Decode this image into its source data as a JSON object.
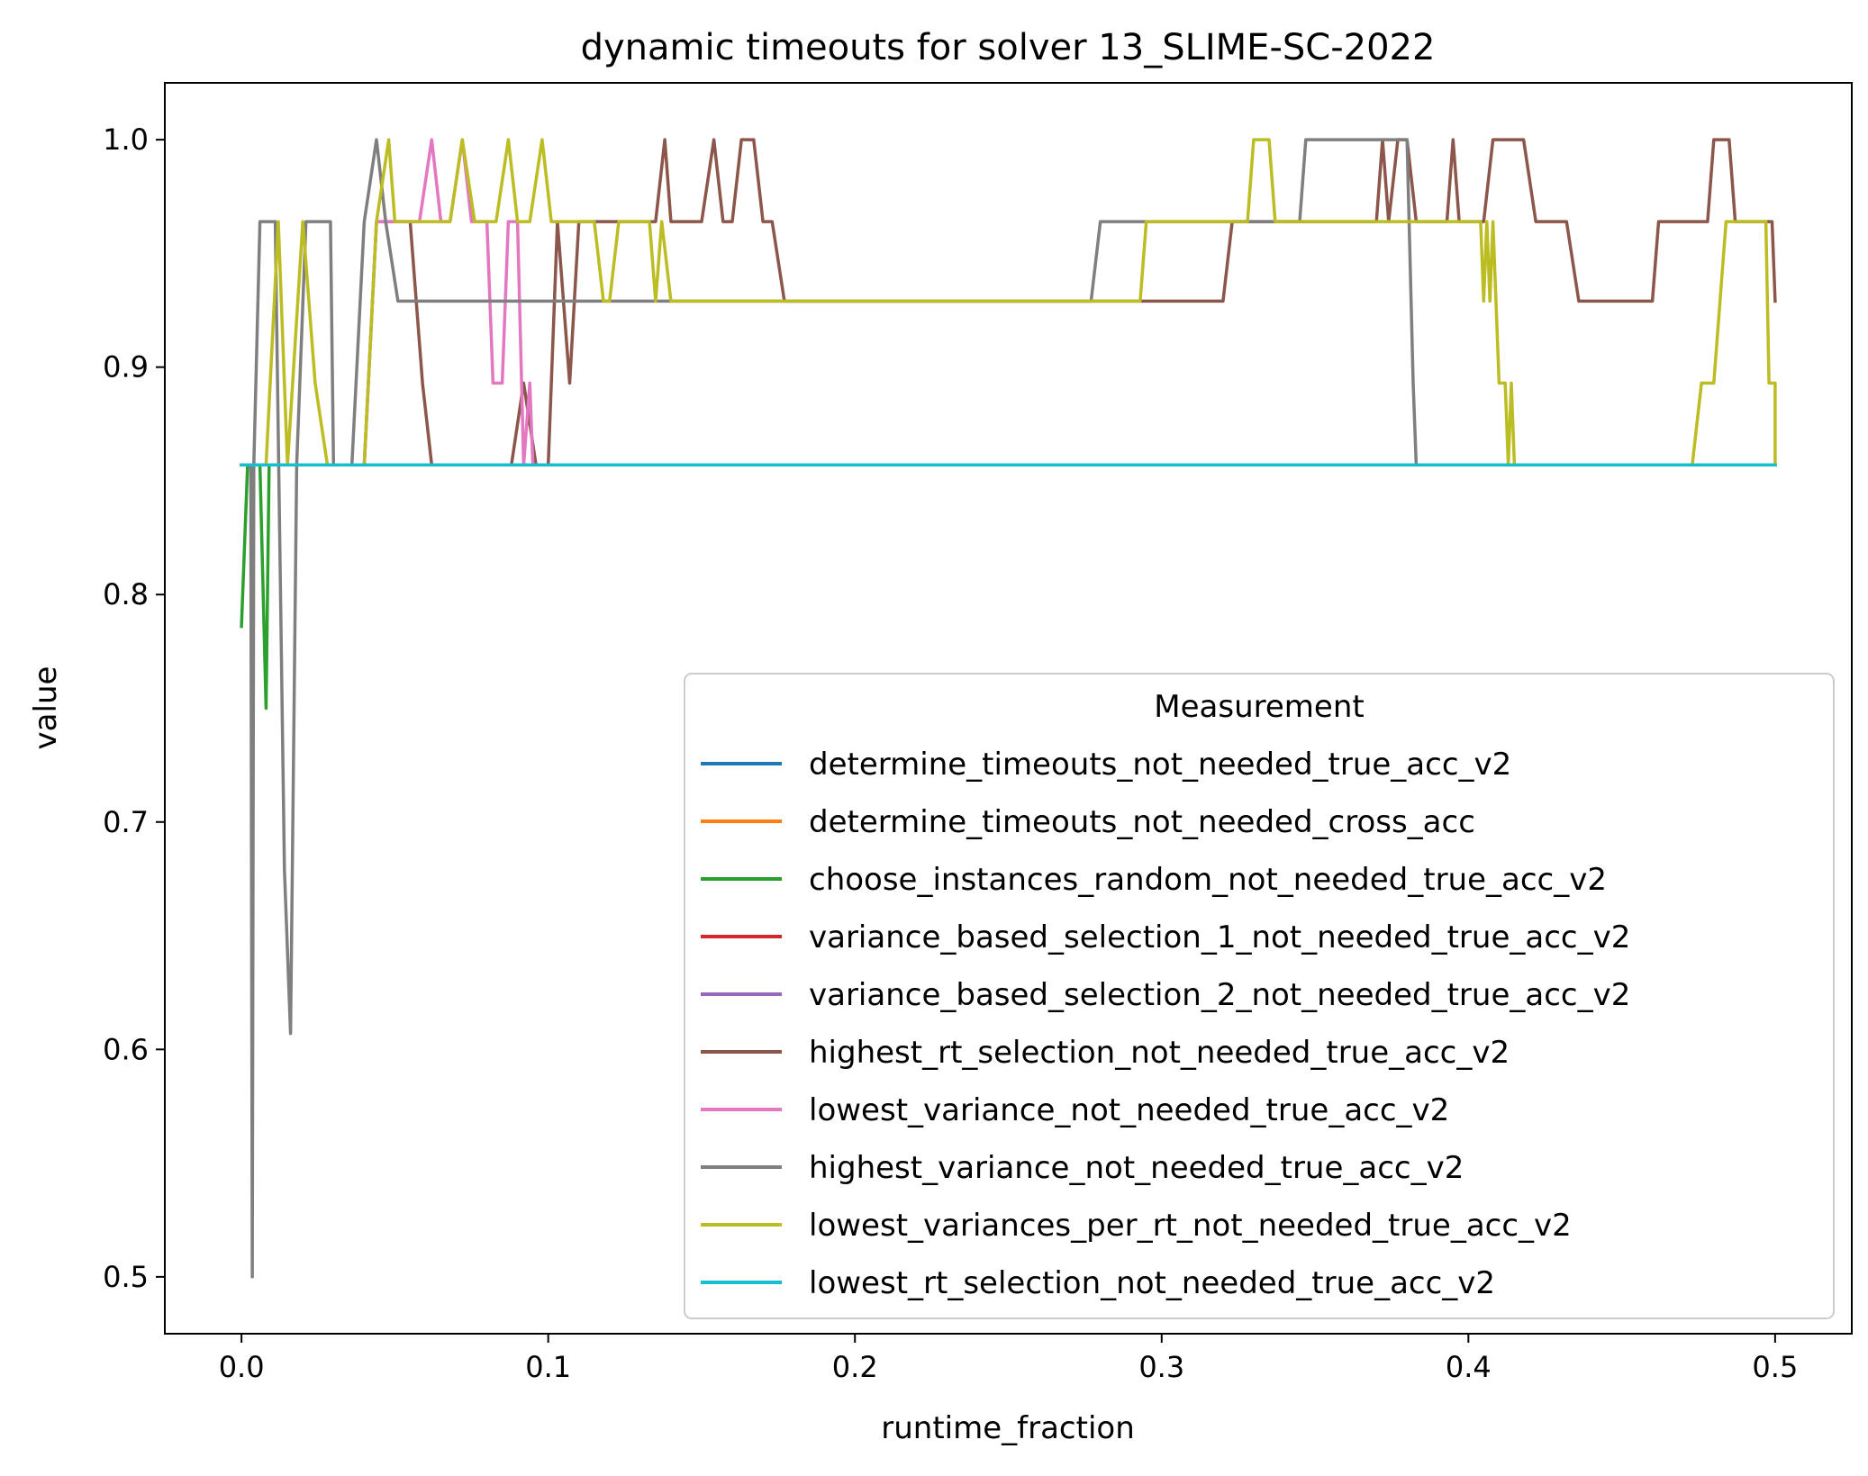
{
  "chart_data": {
    "type": "line",
    "title": "dynamic timeouts for solver 13_SLIME-SC-2022",
    "xlabel": "runtime_fraction",
    "ylabel": "value",
    "xlim": [
      -0.025,
      0.525
    ],
    "ylim": [
      0.475,
      1.025
    ],
    "xticks": [
      0.0,
      0.1,
      0.2,
      0.3,
      0.4,
      0.5
    ],
    "xtick_labels": [
      "0.0",
      "0.1",
      "0.2",
      "0.3",
      "0.4",
      "0.5"
    ],
    "yticks": [
      0.5,
      0.6,
      0.7,
      0.8,
      0.9,
      1.0
    ],
    "ytick_labels": [
      "0.5",
      "0.6",
      "0.7",
      "0.8",
      "0.9",
      "1.0"
    ],
    "grid": false,
    "legend_title": "Measurement",
    "legend_position": "lower-right",
    "series": [
      {
        "name": "determine_timeouts_not_needed_true_acc_v2",
        "color": "#1f77b4",
        "points": [
          [
            0.0,
            0.857
          ],
          [
            0.5,
            0.857
          ]
        ]
      },
      {
        "name": "determine_timeouts_not_needed_cross_acc",
        "color": "#ff7f0e",
        "points": [
          [
            0.0,
            0.857
          ],
          [
            0.5,
            0.857
          ]
        ]
      },
      {
        "name": "choose_instances_random_not_needed_true_acc_v2",
        "color": "#2ca02c",
        "points": [
          [
            0.0,
            0.786
          ],
          [
            0.002,
            0.857
          ],
          [
            0.006,
            0.857
          ],
          [
            0.008,
            0.75
          ],
          [
            0.009,
            0.857
          ],
          [
            0.5,
            0.857
          ]
        ]
      },
      {
        "name": "variance_based_selection_1_not_needed_true_acc_v2",
        "color": "#d62728",
        "points": [
          [
            0.0,
            0.857
          ],
          [
            0.5,
            0.857
          ]
        ]
      },
      {
        "name": "variance_based_selection_2_not_needed_true_acc_v2",
        "color": "#9467bd",
        "points": [
          [
            0.0,
            0.857
          ],
          [
            0.5,
            0.857
          ]
        ]
      },
      {
        "name": "highest_rt_selection_not_needed_true_acc_v2",
        "color": "#8c564b",
        "points": [
          [
            0.0,
            0.857
          ],
          [
            0.04,
            0.857
          ],
          [
            0.044,
            0.964
          ],
          [
            0.055,
            0.964
          ],
          [
            0.059,
            0.893
          ],
          [
            0.062,
            0.857
          ],
          [
            0.088,
            0.857
          ],
          [
            0.092,
            0.893
          ],
          [
            0.096,
            0.857
          ],
          [
            0.1,
            0.857
          ],
          [
            0.103,
            0.964
          ],
          [
            0.107,
            0.893
          ],
          [
            0.11,
            0.964
          ],
          [
            0.135,
            0.964
          ],
          [
            0.138,
            1.0
          ],
          [
            0.14,
            0.964
          ],
          [
            0.15,
            0.964
          ],
          [
            0.154,
            1.0
          ],
          [
            0.157,
            0.964
          ],
          [
            0.16,
            0.964
          ],
          [
            0.163,
            1.0
          ],
          [
            0.167,
            1.0
          ],
          [
            0.17,
            0.964
          ],
          [
            0.173,
            0.964
          ],
          [
            0.177,
            0.929
          ],
          [
            0.3,
            0.929
          ],
          [
            0.32,
            0.929
          ],
          [
            0.323,
            0.964
          ],
          [
            0.37,
            0.964
          ],
          [
            0.372,
            1.0
          ],
          [
            0.374,
            0.964
          ],
          [
            0.377,
            1.0
          ],
          [
            0.38,
            1.0
          ],
          [
            0.383,
            0.964
          ],
          [
            0.393,
            0.964
          ],
          [
            0.395,
            1.0
          ],
          [
            0.397,
            0.964
          ],
          [
            0.405,
            0.964
          ],
          [
            0.408,
            1.0
          ],
          [
            0.418,
            1.0
          ],
          [
            0.422,
            0.964
          ],
          [
            0.432,
            0.964
          ],
          [
            0.436,
            0.929
          ],
          [
            0.46,
            0.929
          ],
          [
            0.462,
            0.964
          ],
          [
            0.478,
            0.964
          ],
          [
            0.48,
            1.0
          ],
          [
            0.485,
            1.0
          ],
          [
            0.487,
            0.964
          ],
          [
            0.499,
            0.964
          ],
          [
            0.5,
            0.929
          ]
        ]
      },
      {
        "name": "lowest_variance_not_needed_true_acc_v2",
        "color": "#e377c2",
        "points": [
          [
            0.0,
            0.857
          ],
          [
            0.04,
            0.857
          ],
          [
            0.044,
            0.964
          ],
          [
            0.058,
            0.964
          ],
          [
            0.062,
            1.0
          ],
          [
            0.065,
            0.964
          ],
          [
            0.068,
            0.964
          ],
          [
            0.072,
            1.0
          ],
          [
            0.075,
            0.964
          ],
          [
            0.08,
            0.964
          ],
          [
            0.082,
            0.893
          ],
          [
            0.085,
            0.893
          ],
          [
            0.087,
            0.964
          ],
          [
            0.09,
            0.964
          ],
          [
            0.092,
            0.857
          ],
          [
            0.094,
            0.893
          ],
          [
            0.095,
            0.857
          ],
          [
            0.5,
            0.857
          ]
        ]
      },
      {
        "name": "highest_variance_not_needed_true_acc_v2",
        "color": "#7f7f7f",
        "points": [
          [
            0.0,
            0.857
          ],
          [
            0.003,
            0.857
          ],
          [
            0.0035,
            0.5
          ],
          [
            0.004,
            0.857
          ],
          [
            0.006,
            0.964
          ],
          [
            0.011,
            0.964
          ],
          [
            0.014,
            0.679
          ],
          [
            0.016,
            0.607
          ],
          [
            0.018,
            0.857
          ],
          [
            0.021,
            0.964
          ],
          [
            0.026,
            0.964
          ],
          [
            0.029,
            0.964
          ],
          [
            0.03,
            0.857
          ],
          [
            0.036,
            0.857
          ],
          [
            0.04,
            0.964
          ],
          [
            0.044,
            1.0
          ],
          [
            0.047,
            0.964
          ],
          [
            0.051,
            0.929
          ],
          [
            0.277,
            0.929
          ],
          [
            0.28,
            0.964
          ],
          [
            0.345,
            0.964
          ],
          [
            0.347,
            1.0
          ],
          [
            0.38,
            1.0
          ],
          [
            0.382,
            0.893
          ],
          [
            0.383,
            0.857
          ],
          [
            0.5,
            0.857
          ]
        ]
      },
      {
        "name": "lowest_variances_per_rt_not_needed_true_acc_v2",
        "color": "#bcbd22",
        "points": [
          [
            0.0,
            0.857
          ],
          [
            0.008,
            0.857
          ],
          [
            0.012,
            0.964
          ],
          [
            0.015,
            0.857
          ],
          [
            0.02,
            0.964
          ],
          [
            0.024,
            0.893
          ],
          [
            0.028,
            0.857
          ],
          [
            0.04,
            0.857
          ],
          [
            0.044,
            0.964
          ],
          [
            0.048,
            1.0
          ],
          [
            0.05,
            0.964
          ],
          [
            0.068,
            0.964
          ],
          [
            0.072,
            1.0
          ],
          [
            0.076,
            0.964
          ],
          [
            0.083,
            0.964
          ],
          [
            0.087,
            1.0
          ],
          [
            0.09,
            0.964
          ],
          [
            0.094,
            0.964
          ],
          [
            0.098,
            1.0
          ],
          [
            0.101,
            0.964
          ],
          [
            0.115,
            0.964
          ],
          [
            0.118,
            0.929
          ],
          [
            0.12,
            0.929
          ],
          [
            0.123,
            0.964
          ],
          [
            0.133,
            0.964
          ],
          [
            0.135,
            0.929
          ],
          [
            0.137,
            0.964
          ],
          [
            0.14,
            0.929
          ],
          [
            0.293,
            0.929
          ],
          [
            0.295,
            0.964
          ],
          [
            0.328,
            0.964
          ],
          [
            0.33,
            1.0
          ],
          [
            0.335,
            1.0
          ],
          [
            0.337,
            0.964
          ],
          [
            0.404,
            0.964
          ],
          [
            0.405,
            0.929
          ],
          [
            0.406,
            0.964
          ],
          [
            0.407,
            0.929
          ],
          [
            0.408,
            0.964
          ],
          [
            0.41,
            0.893
          ],
          [
            0.412,
            0.893
          ],
          [
            0.413,
            0.857
          ],
          [
            0.414,
            0.893
          ],
          [
            0.415,
            0.857
          ],
          [
            0.473,
            0.857
          ],
          [
            0.476,
            0.893
          ],
          [
            0.48,
            0.893
          ],
          [
            0.484,
            0.964
          ],
          [
            0.497,
            0.964
          ],
          [
            0.498,
            0.893
          ],
          [
            0.5,
            0.893
          ],
          [
            0.5,
            0.857
          ]
        ]
      },
      {
        "name": "lowest_rt_selection_not_needed_true_acc_v2",
        "color": "#17becf",
        "points": [
          [
            0.0,
            0.857
          ],
          [
            0.5,
            0.857
          ]
        ]
      }
    ]
  }
}
